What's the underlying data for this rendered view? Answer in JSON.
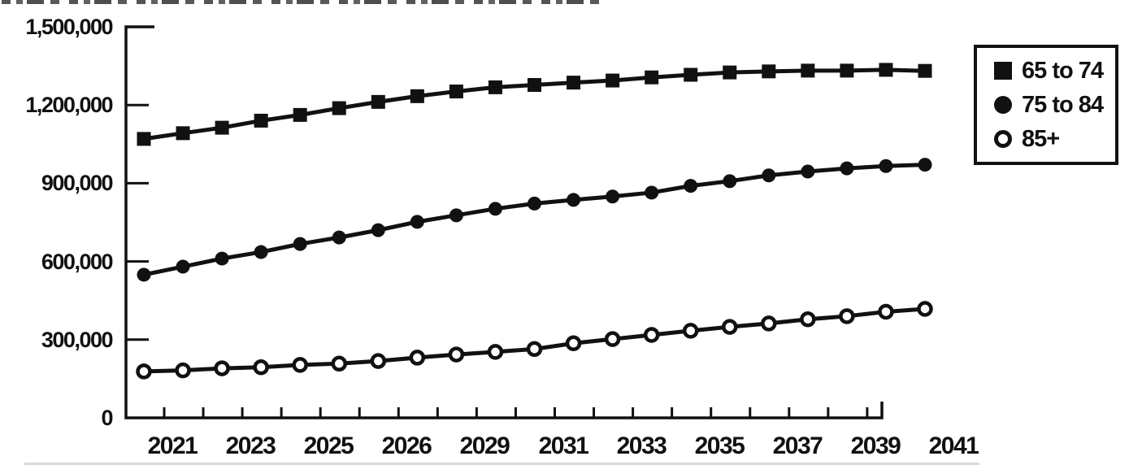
{
  "colors": {
    "ink": "#111111",
    "background": "#ffffff",
    "crop_fragment": "#d9d9d9"
  },
  "legend": {
    "items": [
      {
        "label": "65 to 74",
        "marker": "filled-square"
      },
      {
        "label": "75 to 84",
        "marker": "filled-circle"
      },
      {
        "label": "85+",
        "marker": "open-circle"
      }
    ]
  },
  "chart_data": {
    "type": "line",
    "title": "",
    "xlabel": "",
    "ylabel": "",
    "x": [
      2021,
      2022,
      2023,
      2024,
      2025,
      2026,
      2027,
      2028,
      2029,
      2030,
      2031,
      2032,
      2033,
      2034,
      2035,
      2036,
      2037,
      2038,
      2039,
      2040,
      2041
    ],
    "series": [
      {
        "name": "65 to 74",
        "marker": "filled-square",
        "values": [
          1070000,
          1092000,
          1113000,
          1140000,
          1162000,
          1188000,
          1212000,
          1234000,
          1252000,
          1268000,
          1277000,
          1286000,
          1294000,
          1306000,
          1316000,
          1325000,
          1329000,
          1332000,
          1332000,
          1335000,
          1331000
        ]
      },
      {
        "name": "75 to 84",
        "marker": "filled-circle",
        "values": [
          549000,
          580000,
          611000,
          636000,
          667000,
          692000,
          720000,
          752000,
          777000,
          802000,
          822000,
          836000,
          849000,
          864000,
          890000,
          908000,
          930000,
          945000,
          957000,
          966000,
          971000
        ]
      },
      {
        "name": "85+",
        "marker": "open-circle",
        "values": [
          178000,
          182000,
          190000,
          194000,
          203000,
          208000,
          218000,
          231000,
          243000,
          253000,
          264000,
          286000,
          302000,
          318000,
          334000,
          349000,
          362000,
          378000,
          390000,
          407000,
          418000
        ]
      }
    ],
    "ylim": [
      0,
      1500000
    ],
    "y_tick_values": [
      1500000,
      1200000,
      900000,
      600000,
      300000,
      0
    ],
    "y_tick_labels": [
      "1,500,000",
      "1,200,000",
      "900,000",
      "600,000",
      "300,000",
      "0"
    ],
    "x_tick_labels": [
      "2021",
      "2023",
      "2025",
      "2026",
      "2029",
      "2031",
      "2033",
      "2035",
      "2037",
      "2039",
      "2041"
    ],
    "grid": false,
    "legend_position": "top-right"
  }
}
